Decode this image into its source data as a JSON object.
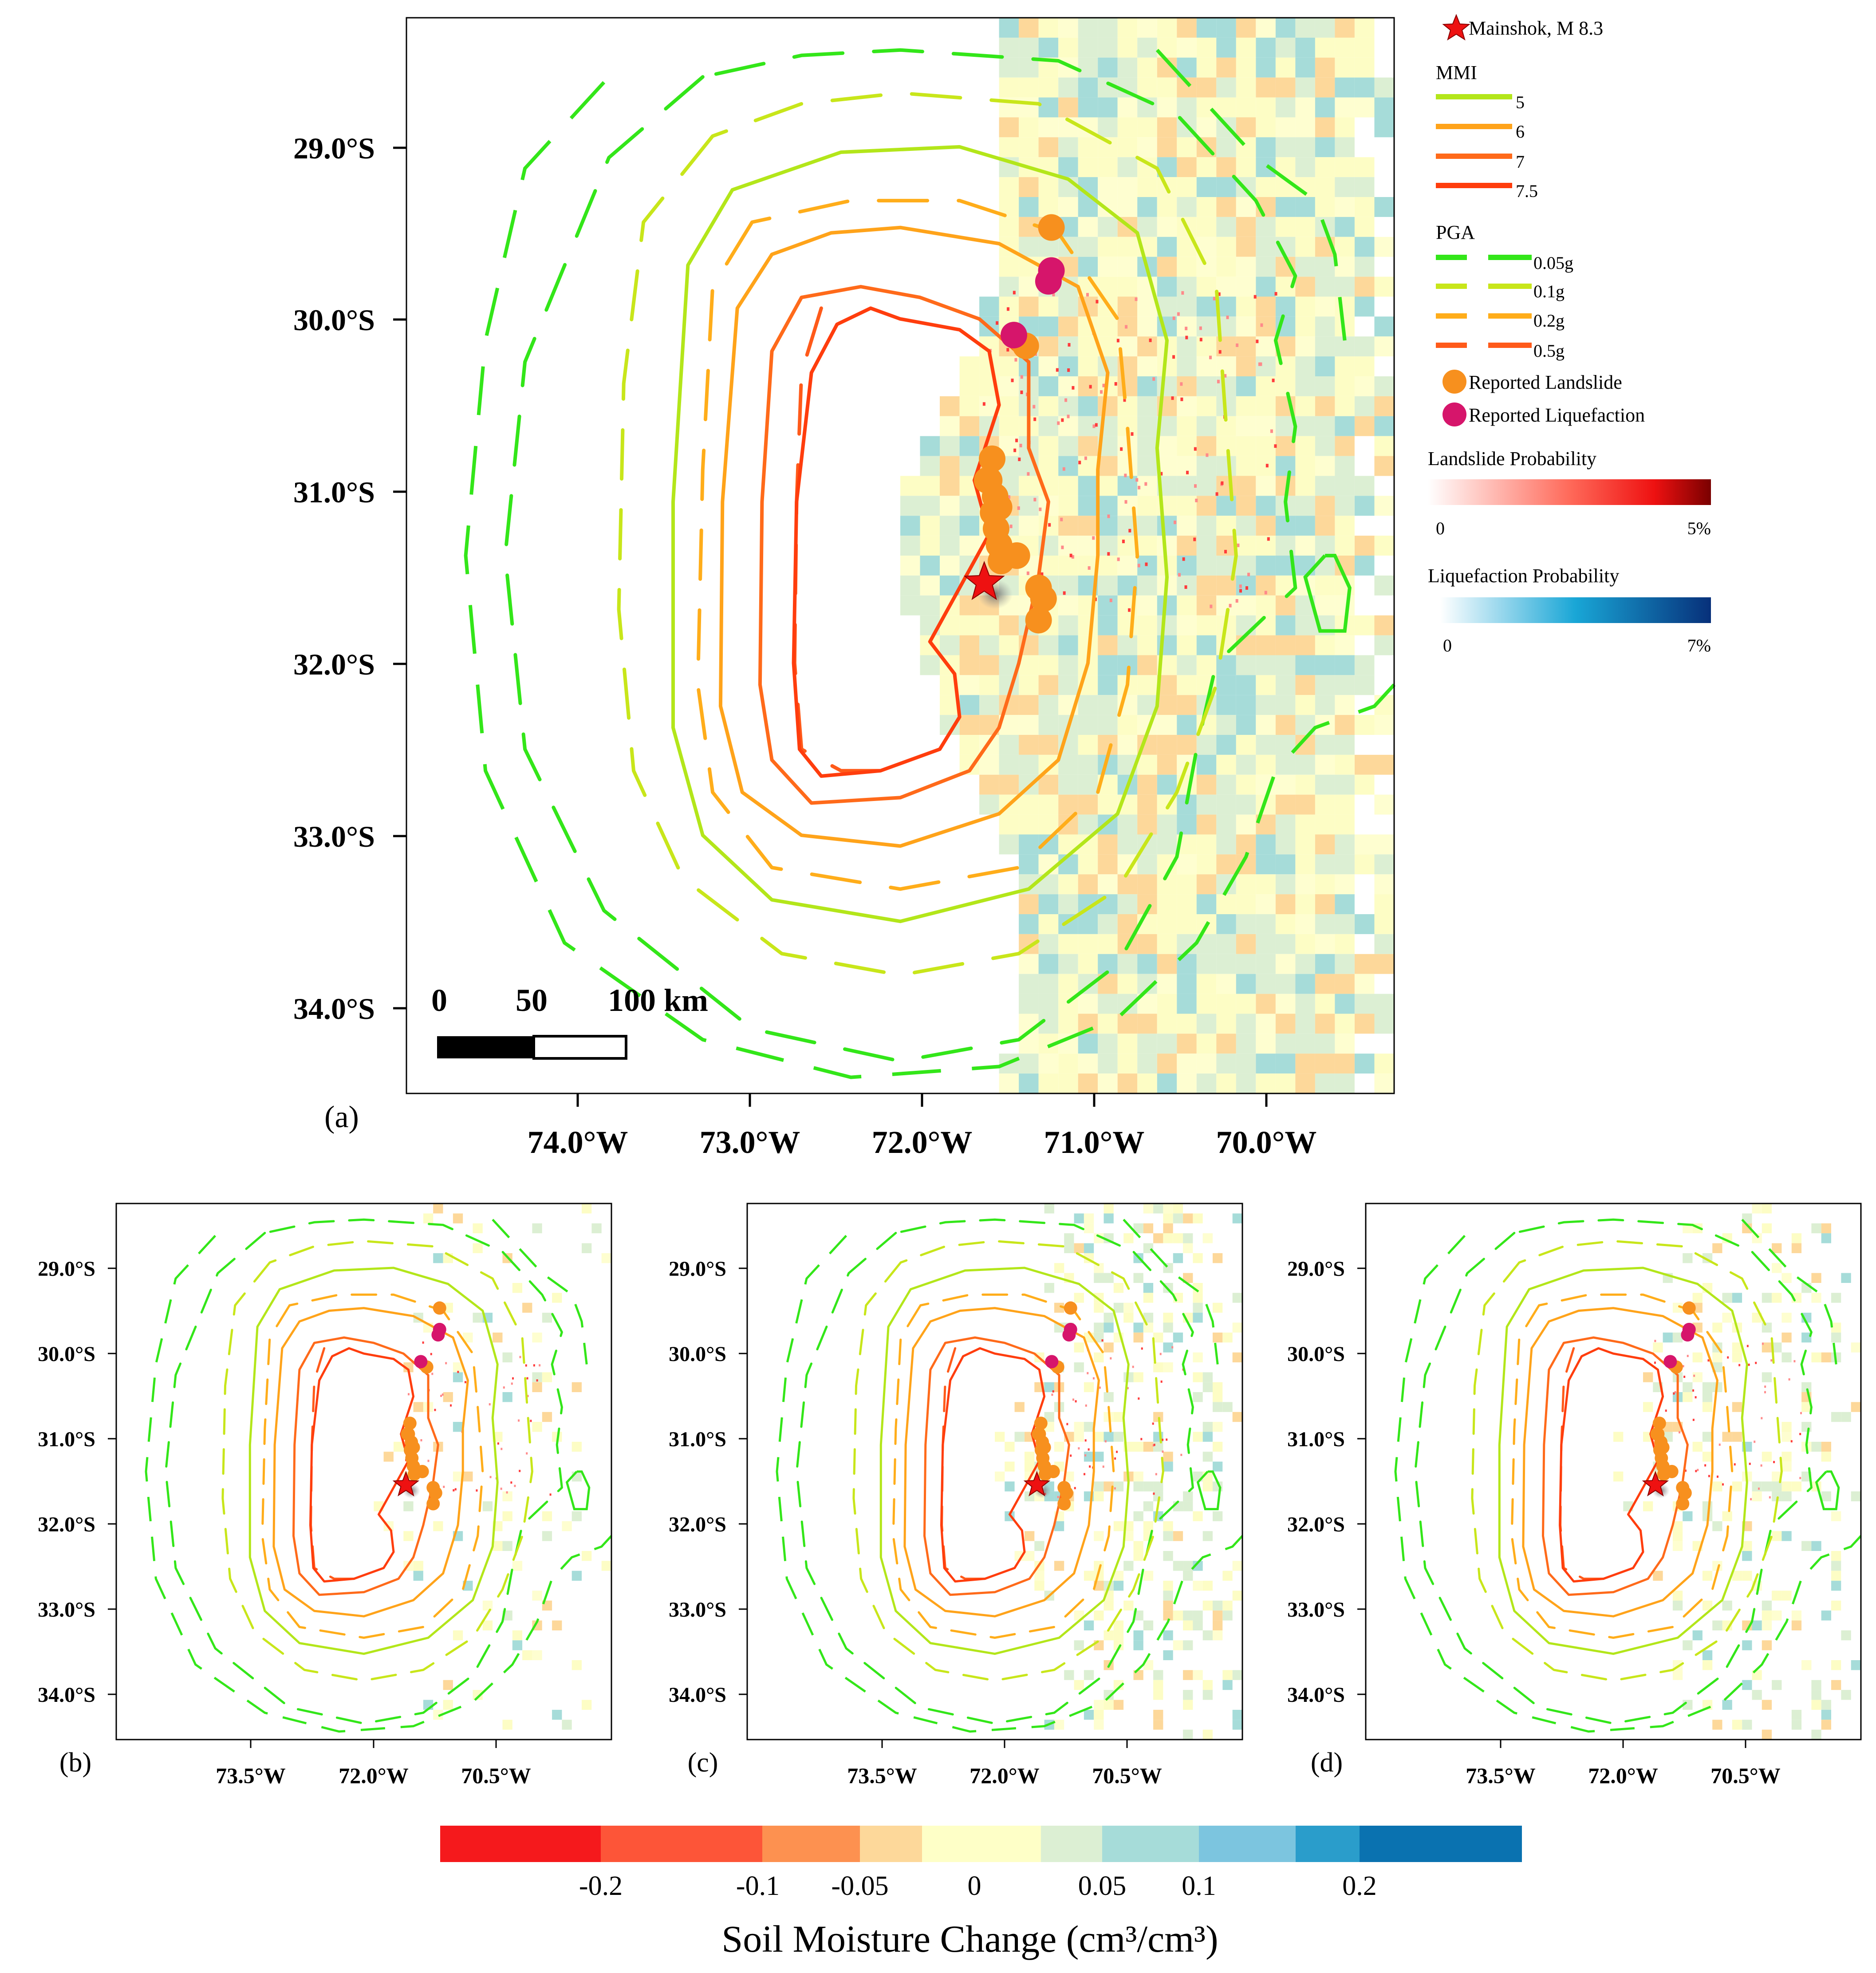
{
  "panels": [
    {
      "id": "a",
      "label": "(a)",
      "lat_ticks": [
        "29.0°S",
        "30.0°S",
        "31.0°S",
        "32.0°S",
        "33.0°S",
        "34.0°S"
      ],
      "lon_ticks": [
        "74.0°W",
        "73.0°W",
        "72.0°W",
        "71.0°W",
        "70.0°W"
      ]
    },
    {
      "id": "b",
      "label": "(b)",
      "lat_ticks": [
        "29.0°S",
        "30.0°S",
        "31.0°S",
        "32.0°S",
        "33.0°S",
        "34.0°S"
      ],
      "lon_ticks": [
        "73.5°W",
        "72.0°W",
        "70.5°W"
      ]
    },
    {
      "id": "c",
      "label": "(c)",
      "lat_ticks": [
        "29.0°S",
        "30.0°S",
        "31.0°S",
        "32.0°S",
        "33.0°S",
        "34.0°S"
      ],
      "lon_ticks": [
        "73.5°W",
        "72.0°W",
        "70.5°W"
      ]
    },
    {
      "id": "d",
      "label": "(d)",
      "lat_ticks": [
        "29.0°S",
        "30.0°S",
        "31.0°S",
        "32.0°S",
        "33.0°S",
        "34.0°S"
      ],
      "lon_ticks": [
        "73.5°W",
        "72.0°W",
        "70.5°W"
      ]
    }
  ],
  "scale_bar": {
    "labels": [
      "0",
      "50",
      "100 km"
    ]
  },
  "legend": {
    "mainshock": "Mainshok, M 8.3",
    "mmi_title": "MMI",
    "mmi_levels": [
      {
        "label": "5",
        "color": "#b3e61a"
      },
      {
        "label": "6",
        "color": "#ffa31a"
      },
      {
        "label": "7",
        "color": "#ff6a1a"
      },
      {
        "label": "7.5",
        "color": "#ff3d0d"
      }
    ],
    "pga_title": "PGA",
    "pga_levels": [
      {
        "label": "0.05g",
        "color": "#33e619"
      },
      {
        "label": "0.1g",
        "color": "#c8e61a"
      },
      {
        "label": "0.2g",
        "color": "#ffad1a"
      },
      {
        "label": "0.5g",
        "color": "#ff5a1a"
      }
    ],
    "landslide_label": "Reported Landslide",
    "liquefaction_label": "Reported Liquefaction",
    "landslide_prob_title": "Landslide Probability",
    "landslide_prob_range": [
      "0",
      "5%"
    ],
    "liquefaction_prob_title": "Liquefaction Probability",
    "liquefaction_prob_range": [
      "0",
      "7%"
    ]
  },
  "colorbar": {
    "title": "Soil Moisture Change (cm³/cm³)",
    "tick_labels": [
      "-0.2",
      "-0.1",
      "-0.05",
      "0",
      "0.05",
      "0.1",
      "0.2"
    ],
    "colors": [
      "#f5191c",
      "#fd5538",
      "#fd9150",
      "#fdd89a",
      "#feffc7",
      "#dcefd3",
      "#a6dcd9",
      "#7cc5df",
      "#2a9dcb",
      "#0a72b0"
    ]
  },
  "colors": {
    "mainshock": "#ee1111",
    "landslide": "#f7901e",
    "liquefaction": "#d6156b",
    "mmi5": "#b3e61a",
    "mmi6": "#ffa31a",
    "mmi7": "#ff6a1a",
    "mmi75": "#ff3d0d",
    "pga005": "#33e619",
    "pga01": "#c8e61a",
    "pga02": "#ffad1a",
    "pga05": "#ff5a1a"
  }
}
